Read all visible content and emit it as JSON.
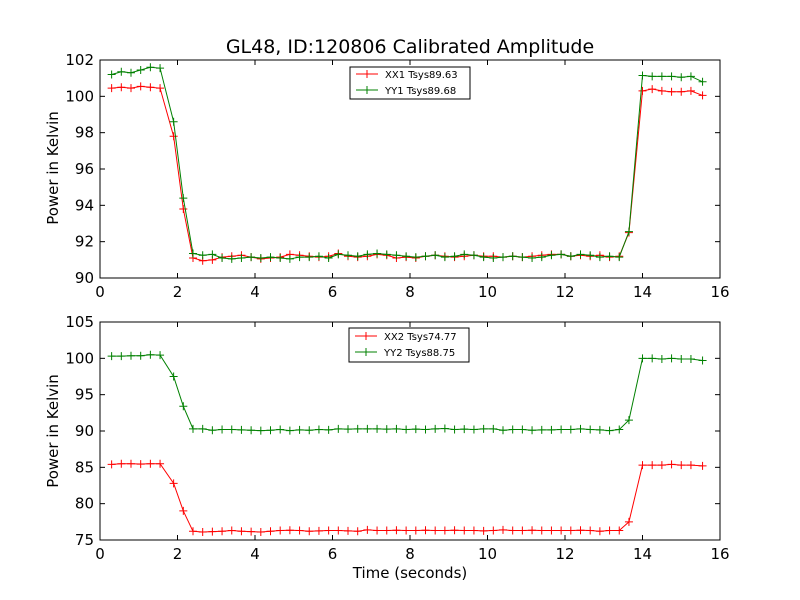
{
  "chart_data": [
    {
      "type": "line",
      "title": "GL48, ID:120806 Calibrated Amplitude",
      "xlabel": "",
      "ylabel": "Power in Kelvin",
      "xlim": [
        0,
        16
      ],
      "ylim": [
        90,
        102
      ],
      "xticks": [
        0,
        2,
        4,
        6,
        8,
        10,
        12,
        14,
        16
      ],
      "yticks": [
        90,
        92,
        94,
        96,
        98,
        100,
        102
      ],
      "grid": false,
      "legend_position": "upper-center",
      "x": [
        0.3,
        0.55,
        0.8,
        1.05,
        1.3,
        1.55,
        1.9,
        2.15,
        2.4,
        2.65,
        2.9,
        3.15,
        3.4,
        3.65,
        3.9,
        4.15,
        4.4,
        4.65,
        4.9,
        5.15,
        5.4,
        5.65,
        5.9,
        6.15,
        6.4,
        6.65,
        6.9,
        7.15,
        7.4,
        7.65,
        7.9,
        8.15,
        8.4,
        8.65,
        8.9,
        9.15,
        9.4,
        9.65,
        9.9,
        10.15,
        10.4,
        10.65,
        10.9,
        11.15,
        11.4,
        11.65,
        11.9,
        12.15,
        12.4,
        12.65,
        12.9,
        13.15,
        13.4,
        13.65,
        14.0,
        14.25,
        14.5,
        14.75,
        15.0,
        15.25,
        15.55
      ],
      "series": [
        {
          "name": "XX1 Tsys89.63",
          "color": "#ff0000",
          "values": [
            100.45,
            100.5,
            100.45,
            100.55,
            100.5,
            100.45,
            97.8,
            93.8,
            91.1,
            90.95,
            91.0,
            91.15,
            91.2,
            91.25,
            91.15,
            91.05,
            91.1,
            91.15,
            91.3,
            91.25,
            91.2,
            91.15,
            91.2,
            91.35,
            91.2,
            91.15,
            91.2,
            91.3,
            91.25,
            91.1,
            91.15,
            91.1,
            91.2,
            91.25,
            91.2,
            91.15,
            91.2,
            91.25,
            91.2,
            91.2,
            91.15,
            91.2,
            91.15,
            91.2,
            91.25,
            91.3,
            91.3,
            91.2,
            91.25,
            91.2,
            91.25,
            91.15,
            91.2,
            92.5,
            100.3,
            100.4,
            100.3,
            100.25,
            100.25,
            100.3,
            100.05
          ]
        },
        {
          "name": "YY1 Tsys89.68",
          "color": "#008000",
          "values": [
            101.2,
            101.35,
            101.3,
            101.45,
            101.6,
            101.55,
            98.6,
            94.4,
            91.35,
            91.25,
            91.3,
            91.1,
            91.05,
            91.1,
            91.15,
            91.1,
            91.15,
            91.1,
            91.05,
            91.15,
            91.15,
            91.2,
            91.1,
            91.3,
            91.25,
            91.2,
            91.3,
            91.35,
            91.3,
            91.25,
            91.2,
            91.15,
            91.2,
            91.25,
            91.15,
            91.2,
            91.3,
            91.25,
            91.15,
            91.1,
            91.15,
            91.2,
            91.15,
            91.1,
            91.15,
            91.25,
            91.3,
            91.2,
            91.3,
            91.25,
            91.15,
            91.2,
            91.15,
            92.55,
            101.15,
            101.1,
            101.1,
            101.1,
            101.05,
            101.1,
            100.8
          ]
        }
      ]
    },
    {
      "type": "line",
      "title": "",
      "xlabel": "Time (seconds)",
      "ylabel": "Power in Kelvin",
      "xlim": [
        0,
        16
      ],
      "ylim": [
        75,
        105
      ],
      "xticks": [
        0,
        2,
        4,
        6,
        8,
        10,
        12,
        14,
        16
      ],
      "yticks": [
        75,
        80,
        85,
        90,
        95,
        100,
        105
      ],
      "grid": false,
      "legend_position": "upper-center",
      "x": [
        0.3,
        0.55,
        0.8,
        1.05,
        1.3,
        1.55,
        1.9,
        2.15,
        2.4,
        2.65,
        2.9,
        3.15,
        3.4,
        3.65,
        3.9,
        4.15,
        4.4,
        4.65,
        4.9,
        5.15,
        5.4,
        5.65,
        5.9,
        6.15,
        6.4,
        6.65,
        6.9,
        7.15,
        7.4,
        7.65,
        7.9,
        8.15,
        8.4,
        8.65,
        8.9,
        9.15,
        9.4,
        9.65,
        9.9,
        10.15,
        10.4,
        10.65,
        10.9,
        11.15,
        11.4,
        11.65,
        11.9,
        12.15,
        12.4,
        12.65,
        12.9,
        13.15,
        13.4,
        13.65,
        14.0,
        14.25,
        14.5,
        14.75,
        15.0,
        15.25,
        15.55
      ],
      "series": [
        {
          "name": "XX2 Tsys74.77",
          "color": "#ff0000",
          "values": [
            85.4,
            85.5,
            85.5,
            85.45,
            85.5,
            85.5,
            82.8,
            79.0,
            76.2,
            76.1,
            76.15,
            76.2,
            76.3,
            76.2,
            76.15,
            76.1,
            76.2,
            76.3,
            76.35,
            76.3,
            76.2,
            76.25,
            76.3,
            76.3,
            76.25,
            76.2,
            76.4,
            76.3,
            76.3,
            76.35,
            76.3,
            76.3,
            76.35,
            76.3,
            76.3,
            76.35,
            76.3,
            76.3,
            76.25,
            76.3,
            76.4,
            76.3,
            76.3,
            76.35,
            76.3,
            76.3,
            76.3,
            76.3,
            76.35,
            76.3,
            76.2,
            76.3,
            76.3,
            77.5,
            85.3,
            85.3,
            85.3,
            85.4,
            85.3,
            85.3,
            85.2
          ]
        },
        {
          "name": "YY2 Tsys88.75",
          "color": "#008000",
          "values": [
            100.3,
            100.3,
            100.35,
            100.35,
            100.5,
            100.45,
            97.5,
            93.4,
            90.3,
            90.3,
            90.1,
            90.2,
            90.2,
            90.15,
            90.1,
            90.05,
            90.1,
            90.2,
            90.05,
            90.15,
            90.1,
            90.2,
            90.15,
            90.3,
            90.25,
            90.3,
            90.3,
            90.3,
            90.25,
            90.3,
            90.2,
            90.25,
            90.2,
            90.3,
            90.35,
            90.2,
            90.25,
            90.2,
            90.3,
            90.3,
            90.1,
            90.2,
            90.2,
            90.1,
            90.15,
            90.15,
            90.2,
            90.2,
            90.3,
            90.2,
            90.15,
            90.05,
            90.2,
            91.5,
            100.0,
            100.0,
            99.9,
            100.0,
            99.9,
            99.9,
            99.7
          ]
        }
      ]
    }
  ]
}
